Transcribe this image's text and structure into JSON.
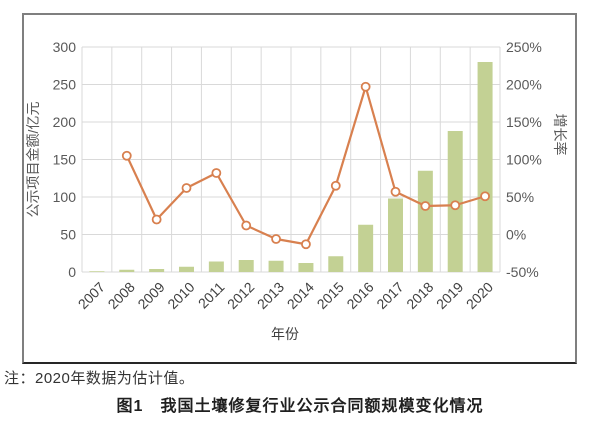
{
  "figure": {
    "note": "注：2020年数据为估计值。",
    "caption": "图1　我国土壤修复行业公示合同额规模变化情况"
  },
  "chart_data": {
    "type": "bar+line",
    "title": "",
    "xlabel": "年份",
    "categories": [
      "2007",
      "2008",
      "2009",
      "2010",
      "2011",
      "2012",
      "2013",
      "2014",
      "2015",
      "2016",
      "2017",
      "2018",
      "2019",
      "2020"
    ],
    "series": [
      {
        "name": "公示项目金额",
        "type": "bar",
        "axis": "left",
        "values": [
          1,
          3,
          4,
          7,
          14,
          16,
          15,
          12,
          21,
          63,
          98,
          135,
          188,
          280
        ]
      },
      {
        "name": "增长率",
        "type": "line",
        "axis": "right",
        "values": [
          null,
          105,
          20,
          62,
          82,
          12,
          -6,
          -13,
          65,
          197,
          57,
          38,
          39,
          51
        ]
      }
    ],
    "left_axis": {
      "label": "公示项目金额/亿元",
      "min": 0,
      "max": 300,
      "step": 50,
      "tick_labels": [
        "300",
        "250",
        "200",
        "150",
        "100",
        "50",
        "0"
      ]
    },
    "right_axis": {
      "label": "增长率",
      "min": -50,
      "max": 250,
      "step": 50,
      "tick_labels": [
        "250%",
        "200%",
        "150%",
        "100%",
        "50%",
        "0%",
        "-50%"
      ]
    },
    "grid": true,
    "legend": false,
    "colors": {
      "bar": "#c3d194",
      "line": "#d8804f",
      "marker_fill": "#ffffff",
      "grid": "#d9d9d9",
      "axis_text": "#595959",
      "year_text": "#404040"
    }
  }
}
